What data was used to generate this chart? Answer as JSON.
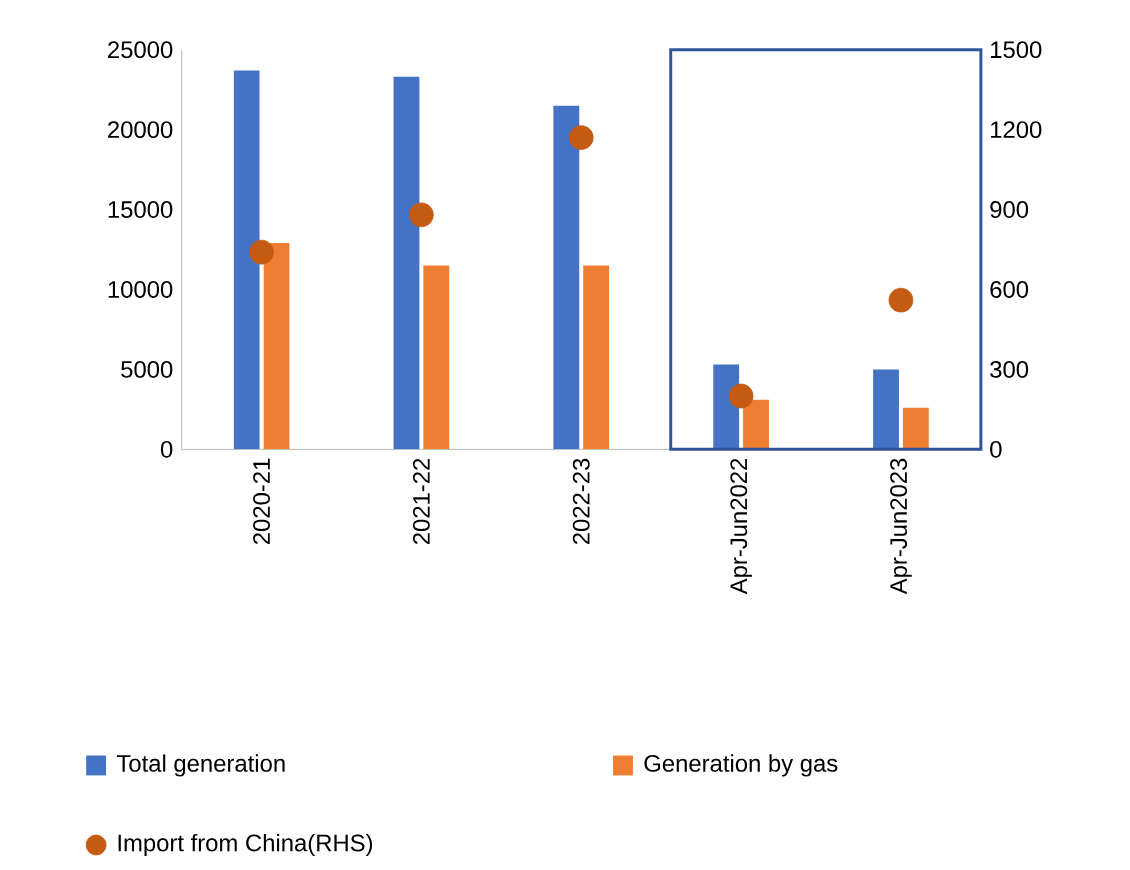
{
  "chart_data": {
    "type": "bar",
    "categories": [
      "2020-21",
      "2021-22",
      "2022-23",
      "Apr-Jun2022",
      "Apr-Jun2023"
    ],
    "series": [
      {
        "name": "Total generation",
        "color": "#4472c4",
        "values": [
          23700,
          23300,
          21500,
          5300,
          5000
        ]
      },
      {
        "name": "Generation by gas",
        "color": "#ed7d31",
        "values": [
          12900,
          11500,
          11500,
          3100,
          2600
        ]
      },
      {
        "name": "Import from China(RHS)",
        "color": "#c55a11",
        "type": "scatter",
        "axis": "y2",
        "marker": "circle",
        "values": [
          740,
          880,
          1170,
          200,
          560
        ]
      }
    ],
    "ylim": [
      0,
      25000
    ],
    "yticks": [
      0,
      5000,
      10000,
      15000,
      20000,
      25000
    ],
    "y2lim": [
      0,
      1500
    ],
    "y2ticks": [
      0,
      300,
      600,
      900,
      1200,
      1500
    ],
    "legend": "bottom"
  }
}
